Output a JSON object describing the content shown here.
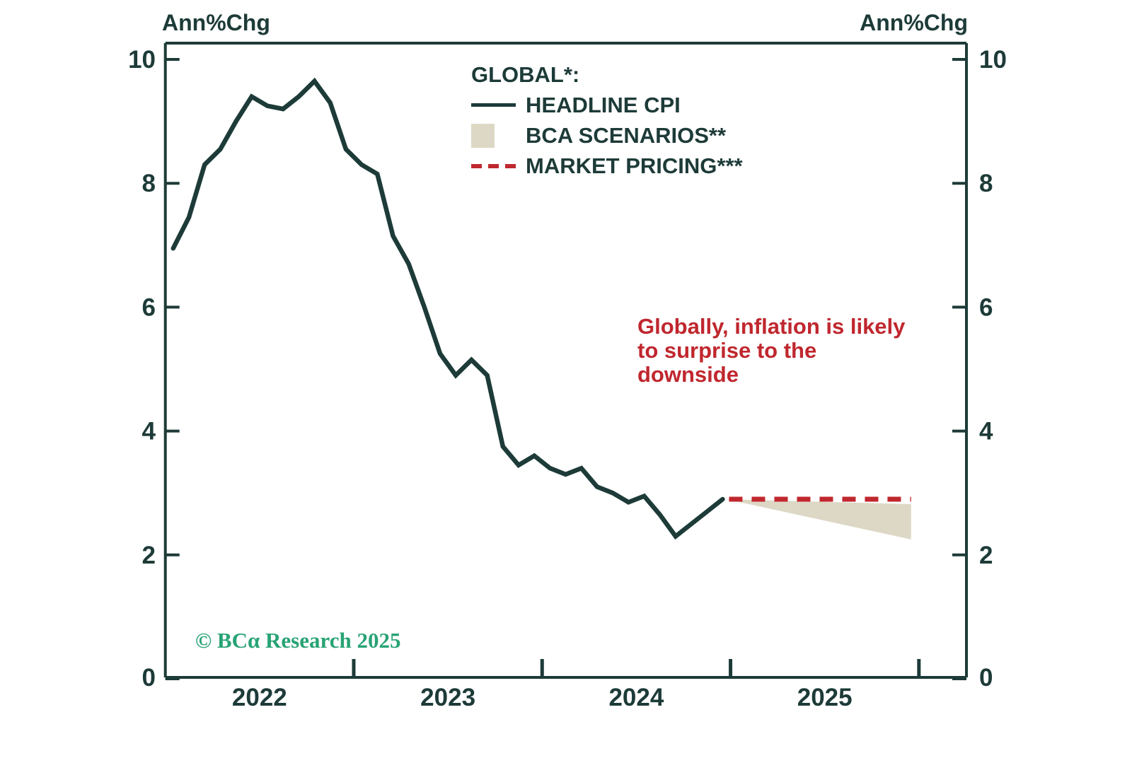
{
  "figure": {
    "left_axis_title": "Ann%Chg",
    "right_axis_title": "Ann%Chg",
    "copyright": "© BCα Research 2025"
  },
  "colors": {
    "teal": "#1d3b38",
    "red": "#c0272e",
    "green": "#27a374",
    "beige": "#ddd8c5"
  },
  "legend": {
    "title": "GLOBAL*:",
    "items": [
      {
        "label": "HEADLINE CPI",
        "swatch": "solid-line",
        "color": "#1d3b38"
      },
      {
        "label": "BCA SCENARIOS**",
        "swatch": "filled-area",
        "color": "#ddd8c5"
      },
      {
        "label": "MARKET PRICING***",
        "swatch": "dashed-line",
        "color": "#c0272e"
      }
    ]
  },
  "annotation": {
    "color": "#c0272e",
    "lines": [
      "Globally, inflation is likely",
      "to surprise to the",
      "downside"
    ]
  },
  "chart_data": {
    "type": "line",
    "title": "",
    "ylabel_left": "Ann%Chg",
    "ylabel_right": "Ann%Chg",
    "ylim": [
      0,
      10.25
    ],
    "yticks": [
      0,
      2,
      4,
      6,
      8,
      10
    ],
    "grid": false,
    "legend_position": "top-center-inside",
    "x_start_month": "2022-01",
    "frequency": "monthly",
    "x_year_ticks": [
      "2023-01",
      "2024-01",
      "2025-01",
      "2026-01"
    ],
    "x_year_labels": [
      "2022",
      "2023",
      "2024",
      "2025"
    ],
    "axis_color": "#1d3b38",
    "series": [
      {
        "name": "HEADLINE CPI",
        "type": "line",
        "color": "#1d3b38",
        "start_month": "2022-01",
        "values": [
          6.95,
          7.45,
          8.3,
          8.55,
          9.0,
          9.4,
          9.25,
          9.2,
          9.4,
          9.65,
          9.3,
          8.55,
          8.3,
          8.15,
          7.15,
          6.7,
          6.0,
          5.25,
          4.9,
          5.15,
          4.9,
          3.75,
          3.45,
          3.6,
          3.4,
          3.3,
          3.4,
          3.1,
          3.0,
          2.85,
          2.95,
          2.65,
          2.3,
          2.5,
          2.7,
          2.9
        ]
      },
      {
        "name": "MARKET PRICING***",
        "type": "dashed",
        "color": "#c0272e",
        "from": "2024-12",
        "to": "2025-12",
        "value": 2.9
      },
      {
        "name": "BCA SCENARIOS**",
        "type": "fan",
        "color": "#ddd8c5",
        "apex": {
          "month": "2024-12",
          "value": 2.9
        },
        "end": {
          "month": "2025-12",
          "top": 2.82,
          "bottom": 2.25
        }
      }
    ]
  }
}
